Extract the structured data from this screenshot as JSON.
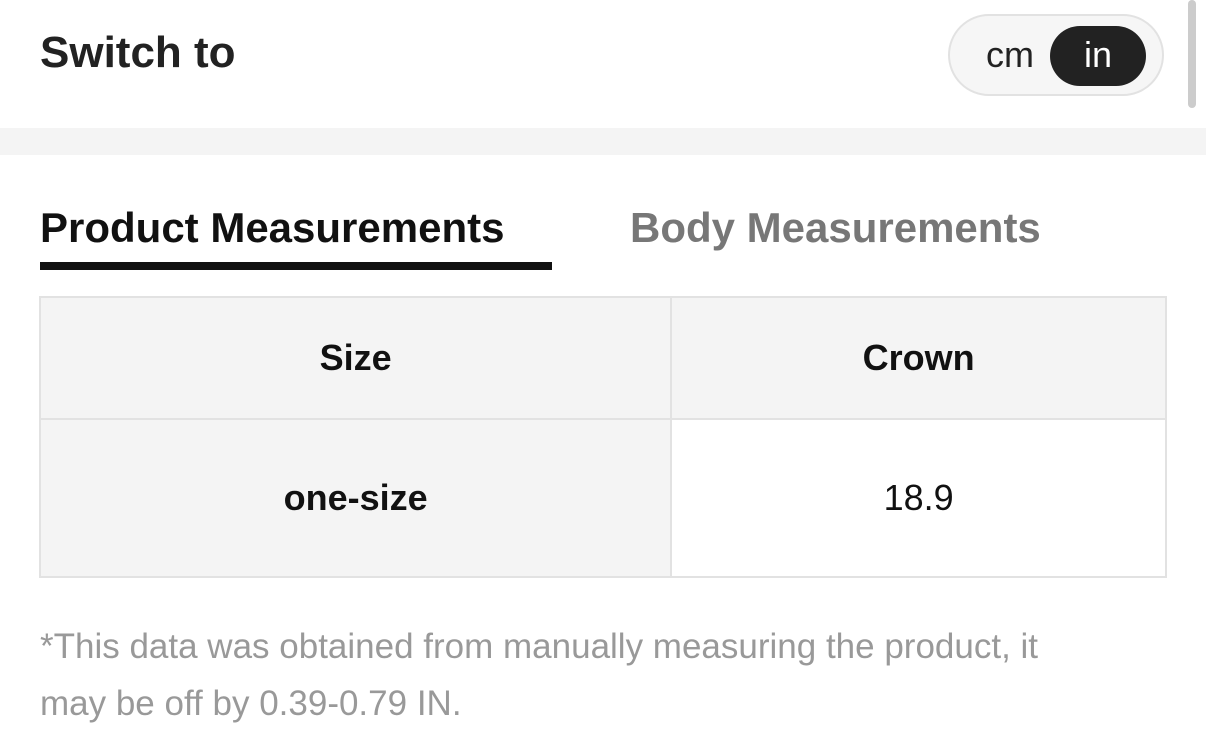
{
  "header": {
    "title": "Switch to",
    "units": [
      "cm",
      "in"
    ],
    "selected_unit": "in"
  },
  "tabs": [
    {
      "label": "Product Measurements",
      "active": true
    },
    {
      "label": "Body Measurements",
      "active": false
    }
  ],
  "table": {
    "headers": [
      "Size",
      "Crown"
    ],
    "rows": [
      [
        "one-size",
        "18.9"
      ]
    ]
  },
  "note": "*This data was obtained from manually measuring the product, it may be off by 0.39-0.79 IN."
}
